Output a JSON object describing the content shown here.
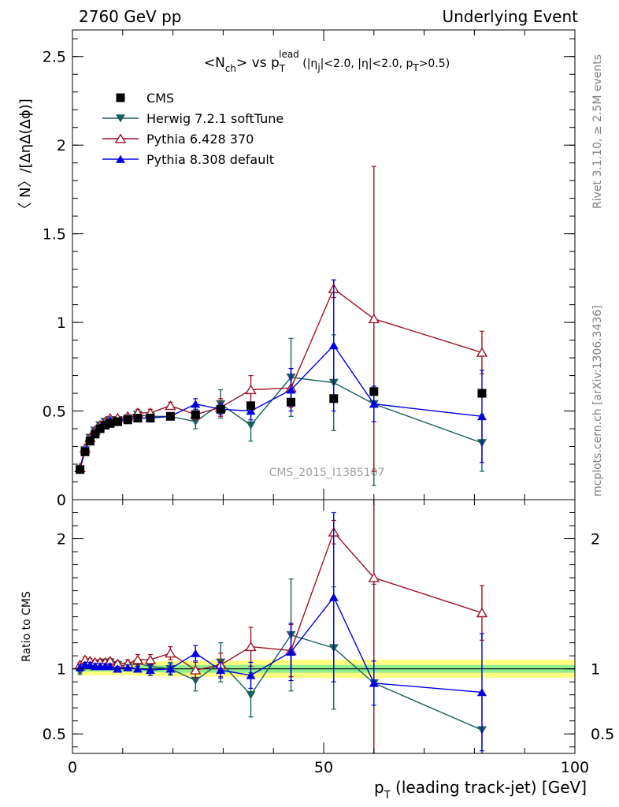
{
  "header": {
    "left": "2760 GeV pp",
    "right": "Underlying Event"
  },
  "side_labels": {
    "rivet": "Rivet 3.1.10, ≥ 2.5M events",
    "mcplots": "mcplots.cern.ch [arXiv:1306.3436]"
  },
  "watermark": "CMS_2015_I1385107",
  "chart_data": [
    {
      "type": "scatter",
      "panel": "main",
      "title": {
        "a": "<N",
        "a_sub": "ch",
        "b": "> vs p",
        "b_sub": "T",
        "b_sup": "lead",
        "c": " (|η",
        "c_sub": "j",
        "d": "|<2.0, |η|<2.0, p",
        "d_sub": "T",
        "e": ">0.5)"
      },
      "ylabel": "〈 N〉/[ΔηΔ(Δϕ)]",
      "xlim": [
        0,
        100
      ],
      "ylim": [
        0,
        2.65
      ],
      "x_ticks": [
        0,
        50,
        100
      ],
      "y_ticks": [
        {
          "v": 0,
          "label": "0"
        },
        {
          "v": 0.5,
          "label": "0.5"
        },
        {
          "v": 1,
          "label": "1"
        },
        {
          "v": 1.5,
          "label": "1.5"
        },
        {
          "v": 2,
          "label": "2"
        },
        {
          "v": 2.5,
          "label": "2.5"
        }
      ],
      "legend_position": "top-left",
      "series": [
        {
          "name": "CMS",
          "color": "#000000",
          "marker": "square",
          "x": [
            1.5,
            2.5,
            3.5,
            4.5,
            5.5,
            6.5,
            7.5,
            9,
            11,
            13,
            15.5,
            19.5,
            24.5,
            29.5,
            35.5,
            43.5,
            52,
            60,
            81.5
          ],
          "y": [
            0.17,
            0.27,
            0.33,
            0.37,
            0.4,
            0.42,
            0.43,
            0.44,
            0.45,
            0.46,
            0.46,
            0.47,
            0.48,
            0.51,
            0.53,
            0.55,
            0.57,
            0.61,
            0.6
          ],
          "err": [
            0.02,
            0.02,
            0.02,
            0.02,
            0.02,
            0.02,
            0.02,
            0.02,
            0.02,
            0.02,
            0.02,
            0.02,
            0.02,
            0.02,
            0.02,
            0.02,
            0.02,
            0.02,
            0.02
          ]
        },
        {
          "name": "Herwig 7.2.1 softTune",
          "color": "#1c5e5e",
          "marker": "triangle-down",
          "x": [
            1.5,
            2.5,
            3.5,
            4.5,
            5.5,
            6.5,
            7.5,
            9,
            11,
            13,
            15.5,
            19.5,
            24.5,
            29.5,
            35.5,
            43.5,
            52,
            60,
            81.5
          ],
          "y": [
            0.17,
            0.28,
            0.35,
            0.39,
            0.42,
            0.44,
            0.45,
            0.45,
            0.46,
            0.48,
            0.47,
            0.47,
            0.44,
            0.54,
            0.42,
            0.69,
            0.66,
            0.54,
            0.32
          ],
          "err": [
            0.01,
            0.01,
            0.01,
            0.01,
            0.01,
            0.01,
            0.01,
            0.01,
            0.01,
            0.02,
            0.02,
            0.02,
            0.04,
            0.08,
            0.09,
            0.22,
            0.27,
            0.46,
            0.16
          ]
        },
        {
          "name": "Pythia 6.428 370",
          "color": "#9b1426",
          "marker": "triangle-up-open",
          "x": [
            1.5,
            2.5,
            3.5,
            4.5,
            5.5,
            6.5,
            7.5,
            9,
            11,
            13,
            15.5,
            19.5,
            24.5,
            29.5,
            35.5,
            43.5,
            52,
            60,
            81.5
          ],
          "y": [
            0.18,
            0.29,
            0.35,
            0.39,
            0.42,
            0.44,
            0.46,
            0.46,
            0.47,
            0.49,
            0.49,
            0.53,
            0.48,
            0.52,
            0.62,
            0.63,
            1.19,
            1.02,
            0.83
          ],
          "err": [
            0.01,
            0.01,
            0.01,
            0.01,
            0.01,
            0.01,
            0.01,
            0.01,
            0.01,
            0.02,
            0.02,
            0.02,
            0.03,
            0.05,
            0.08,
            0.11,
            0.05,
            0.86,
            0.12
          ]
        },
        {
          "name": "Pythia 8.308 default",
          "color": "#0000dd",
          "marker": "triangle-up",
          "x": [
            1.5,
            2.5,
            3.5,
            4.5,
            5.5,
            6.5,
            7.5,
            9,
            11,
            13,
            15.5,
            19.5,
            24.5,
            29.5,
            35.5,
            43.5,
            52,
            60,
            81.5
          ],
          "y": [
            0.17,
            0.28,
            0.34,
            0.38,
            0.41,
            0.43,
            0.45,
            0.44,
            0.46,
            0.46,
            0.46,
            0.47,
            0.54,
            0.51,
            0.5,
            0.62,
            0.87,
            0.54,
            0.47
          ],
          "err": [
            0.01,
            0.01,
            0.01,
            0.01,
            0.01,
            0.01,
            0.01,
            0.01,
            0.01,
            0.01,
            0.02,
            0.02,
            0.03,
            0.03,
            0.05,
            0.12,
            0.37,
            0.1,
            0.26
          ]
        }
      ]
    },
    {
      "type": "scatter",
      "panel": "ratio",
      "xlabel": {
        "a": "p",
        "a_sub": "T",
        "b": " (leading track-jet) [GeV]"
      },
      "ylabel": "Ratio to CMS",
      "xlim": [
        0,
        100
      ],
      "ylim": [
        0.35,
        2.3
      ],
      "x_ticks": [
        {
          "v": 0,
          "label": "0"
        },
        {
          "v": 50,
          "label": "50"
        },
        {
          "v": 100,
          "label": "100"
        }
      ],
      "y_ticks": [
        {
          "v": 0.5,
          "label": "0.5"
        },
        {
          "v": 1,
          "label": "1"
        },
        {
          "v": 2,
          "label": "2"
        }
      ],
      "band_outer": {
        "color": "#ffff80",
        "x": [
          1,
          5,
          10,
          20,
          30,
          40,
          50,
          60,
          100
        ],
        "lo": [
          0.95,
          0.95,
          0.95,
          0.94,
          0.94,
          0.93,
          0.93,
          0.93,
          0.93
        ],
        "hi": [
          1.05,
          1.05,
          1.05,
          1.06,
          1.06,
          1.07,
          1.07,
          1.07,
          1.07
        ]
      },
      "band_inner": {
        "color": "#90ee90",
        "x": [
          1,
          5,
          10,
          20,
          30,
          40,
          50,
          60,
          100
        ],
        "lo": [
          0.98,
          0.98,
          0.98,
          0.97,
          0.97,
          0.97,
          0.97,
          0.97,
          0.97
        ],
        "hi": [
          1.02,
          1.02,
          1.02,
          1.03,
          1.03,
          1.03,
          1.03,
          1.03,
          1.03
        ]
      },
      "series": [
        {
          "name": "Herwig 7.2.1 softTune",
          "color": "#1c5e5e",
          "marker": "triangle-down",
          "x": [
            1.5,
            2.5,
            3.5,
            4.5,
            5.5,
            6.5,
            7.5,
            9,
            11,
            13,
            15.5,
            19.5,
            24.5,
            29.5,
            35.5,
            43.5,
            52,
            60,
            81.5
          ],
          "y": [
            0.98,
            1.02,
            1.03,
            1.04,
            1.04,
            1.05,
            1.05,
            1.03,
            1.02,
            1.04,
            1.02,
            1.0,
            0.91,
            1.05,
            0.8,
            1.26,
            1.16,
            0.89,
            0.53
          ],
          "err": [
            0.02,
            0.02,
            0.02,
            0.02,
            0.02,
            0.02,
            0.02,
            0.02,
            0.03,
            0.04,
            0.04,
            0.05,
            0.08,
            0.15,
            0.17,
            0.43,
            0.47,
            0.76,
            0.28
          ]
        },
        {
          "name": "Pythia 6.428 370",
          "color": "#9b1426",
          "marker": "triangle-up-open",
          "x": [
            1.5,
            2.5,
            3.5,
            4.5,
            5.5,
            6.5,
            7.5,
            9,
            11,
            13,
            15.5,
            19.5,
            24.5,
            29.5,
            35.5,
            43.5,
            52,
            60,
            81.5
          ],
          "y": [
            1.03,
            1.07,
            1.06,
            1.05,
            1.05,
            1.05,
            1.06,
            1.04,
            1.04,
            1.07,
            1.07,
            1.12,
            0.99,
            1.03,
            1.17,
            1.14,
            2.05,
            1.7,
            1.43
          ],
          "err": [
            0.02,
            0.02,
            0.02,
            0.02,
            0.02,
            0.02,
            0.02,
            0.02,
            0.03,
            0.04,
            0.04,
            0.05,
            0.06,
            0.09,
            0.15,
            0.2,
            0.09,
            1.5,
            0.21
          ]
        },
        {
          "name": "Pythia 8.308 default",
          "color": "#0000dd",
          "marker": "triangle-up",
          "x": [
            1.5,
            2.5,
            3.5,
            4.5,
            5.5,
            6.5,
            7.5,
            9,
            11,
            13,
            15.5,
            19.5,
            24.5,
            29.5,
            35.5,
            43.5,
            52,
            60,
            81.5
          ],
          "y": [
            1.01,
            1.03,
            1.03,
            1.02,
            1.02,
            1.02,
            1.02,
            1.0,
            1.01,
            1.0,
            0.99,
            1.0,
            1.12,
            0.99,
            0.95,
            1.13,
            1.55,
            0.89,
            0.82
          ],
          "err": [
            0.02,
            0.02,
            0.02,
            0.02,
            0.02,
            0.02,
            0.02,
            0.02,
            0.02,
            0.02,
            0.04,
            0.04,
            0.06,
            0.06,
            0.1,
            0.22,
            0.65,
            0.17,
            0.45
          ]
        }
      ]
    }
  ]
}
